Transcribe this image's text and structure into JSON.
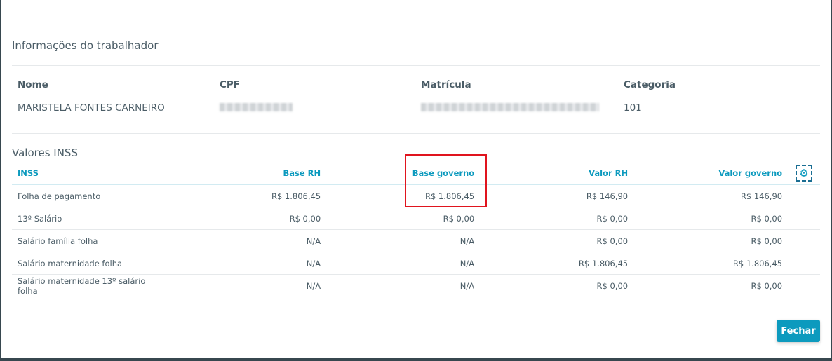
{
  "worker_info": {
    "title": "Informações do trabalhador",
    "labels": {
      "nome": "Nome",
      "cpf": "CPF",
      "matricula": "Matrícula",
      "categoria": "Categoria"
    },
    "values": {
      "nome": "MARISTELA FONTES CARNEIRO",
      "categoria": "101"
    }
  },
  "inss": {
    "title": "Valores INSS",
    "columns": [
      "INSS",
      "Base RH",
      "Base governo",
      "Valor RH",
      "Valor governo"
    ],
    "rows": [
      [
        "Folha de pagamento",
        "R$ 1.806,45",
        "R$ 1.806,45",
        "R$ 146,90",
        "R$ 146,90"
      ],
      [
        "13º Salário",
        "R$ 0,00",
        "R$ 0,00",
        "R$ 0,00",
        "R$ 0,00"
      ],
      [
        "Salário família folha",
        "N/A",
        "N/A",
        "R$ 0,00",
        "R$ 0,00"
      ],
      [
        "Salário maternidade folha",
        "N/A",
        "N/A",
        "R$ 1.806,45",
        "R$ 1.806,45"
      ],
      [
        "Salário maternidade 13º salário folha",
        "N/A",
        "N/A",
        "R$ 0,00",
        "R$ 0,00"
      ]
    ],
    "settings_icon": "gear-icon"
  },
  "footer": {
    "close_label": "Fechar"
  },
  "colors": {
    "accent": "#0c9abe",
    "highlight": "#e0141e"
  }
}
